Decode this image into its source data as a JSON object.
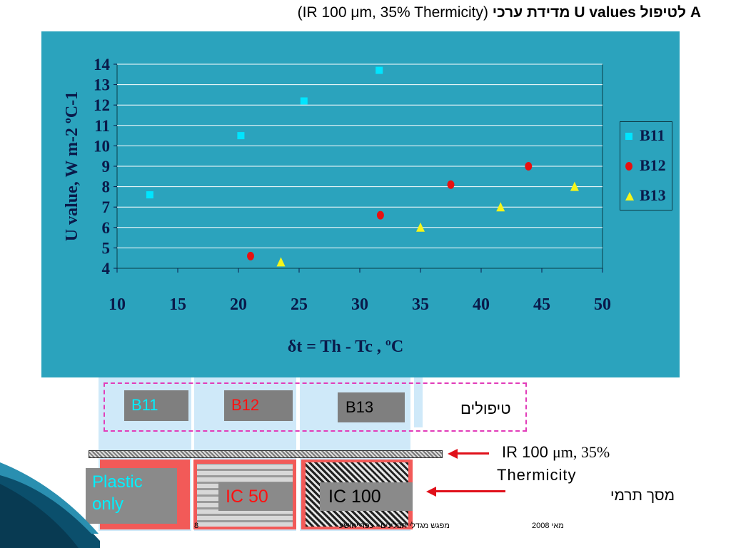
{
  "title": {
    "bold_part": "מדידת ערכי U values לטיפול A",
    "normal_part": "(IR 100 μm, 35%  Thermicity)"
  },
  "chart_data": {
    "type": "scatter",
    "xlabel": "δt = Th - Tc , ºC",
    "ylabel": "U value,  W m-2 ºC-1",
    "xlim": [
      10,
      50
    ],
    "ylim": [
      4,
      14
    ],
    "xticks": [
      10,
      15,
      20,
      25,
      30,
      35,
      40,
      45,
      50
    ],
    "yticks": [
      4,
      5,
      6,
      7,
      8,
      9,
      10,
      11,
      12,
      13,
      14
    ],
    "grid": "horizontal",
    "legend_position": "right",
    "series": [
      {
        "name": "B11",
        "marker": "square",
        "color": "#00e5ff",
        "points": [
          [
            12.7,
            7.6
          ],
          [
            20.2,
            10.5
          ],
          [
            25.4,
            12.2
          ],
          [
            31.6,
            13.7
          ]
        ]
      },
      {
        "name": "B12",
        "marker": "circle",
        "color": "#e81010",
        "points": [
          [
            21.0,
            4.6
          ],
          [
            31.7,
            6.6
          ],
          [
            37.5,
            8.1
          ],
          [
            43.9,
            9.0
          ]
        ]
      },
      {
        "name": "B13",
        "marker": "triangle",
        "color": "#f5f51a",
        "points": [
          [
            23.5,
            4.3
          ],
          [
            35.0,
            6.0
          ],
          [
            41.6,
            7.0
          ],
          [
            47.7,
            8.0
          ]
        ]
      }
    ]
  },
  "treatments": {
    "b11": "B11",
    "b12": "B12",
    "b13": "B13",
    "label": "טיפולים"
  },
  "film": {
    "label_prefix": "IR 100 ",
    "label_unit": "μm, ",
    "label_pct": "35%",
    "label_line2": "Thermicity"
  },
  "screens": {
    "label": "מסך תרמי",
    "plastic": "Plastic only",
    "ic50": "IC 50",
    "ic100": "IC 100"
  },
  "footer": {
    "page": "8",
    "event": "מפגש מגדלי תבלינים - כפר יהושע",
    "date": "2008 מאי"
  },
  "colors": {
    "chart_bg": "#2ba3bd",
    "b11": "#00e5ff",
    "b12": "#e81010",
    "b13": "#f5f51a",
    "dash": "#e23cb9",
    "screen_red": "#f25a58",
    "arrow": "#e0101a"
  }
}
